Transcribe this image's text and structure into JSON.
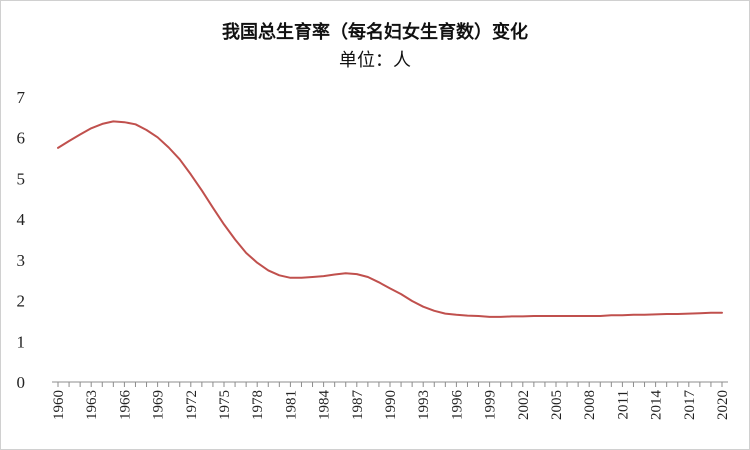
{
  "chart_data": {
    "type": "line",
    "title": "我国总生育率（每名妇女生育数）变化",
    "subtitle": "单位：人",
    "xlabel": "",
    "ylabel": "",
    "ylim": [
      0,
      7
    ],
    "y_ticks": [
      0,
      1,
      2,
      3,
      4,
      5,
      6,
      7
    ],
    "x_ticks": [
      "1960",
      "1963",
      "1966",
      "1969",
      "1972",
      "1975",
      "1978",
      "1981",
      "1984",
      "1987",
      "1990",
      "1993",
      "1996",
      "1999",
      "2002",
      "2005",
      "2008",
      "2011",
      "2014",
      "2017",
      "2020"
    ],
    "grid": false,
    "legend": "none",
    "series": [
      {
        "color": "#c0504d",
        "x": [
          1960,
          1961,
          1962,
          1963,
          1964,
          1965,
          1966,
          1967,
          1968,
          1969,
          1970,
          1971,
          1972,
          1973,
          1974,
          1975,
          1976,
          1977,
          1978,
          1979,
          1980,
          1981,
          1982,
          1983,
          1984,
          1985,
          1986,
          1987,
          1988,
          1989,
          1990,
          1991,
          1992,
          1993,
          1994,
          1995,
          1996,
          1997,
          1998,
          1999,
          2000,
          2001,
          2002,
          2003,
          2004,
          2005,
          2006,
          2007,
          2008,
          2009,
          2010,
          2011,
          2012,
          2013,
          2014,
          2015,
          2016,
          2017,
          2018,
          2019,
          2020
        ],
        "values": [
          5.75,
          5.92,
          6.08,
          6.23,
          6.34,
          6.4,
          6.38,
          6.33,
          6.19,
          6.01,
          5.76,
          5.47,
          5.1,
          4.7,
          4.28,
          3.87,
          3.5,
          3.17,
          2.93,
          2.74,
          2.62,
          2.56,
          2.56,
          2.58,
          2.6,
          2.64,
          2.67,
          2.65,
          2.58,
          2.45,
          2.3,
          2.16,
          1.99,
          1.85,
          1.75,
          1.68,
          1.65,
          1.63,
          1.62,
          1.6,
          1.6,
          1.61,
          1.61,
          1.62,
          1.62,
          1.62,
          1.62,
          1.62,
          1.62,
          1.62,
          1.64,
          1.64,
          1.65,
          1.65,
          1.66,
          1.67,
          1.67,
          1.68,
          1.69,
          1.7,
          1.7
        ]
      }
    ]
  }
}
